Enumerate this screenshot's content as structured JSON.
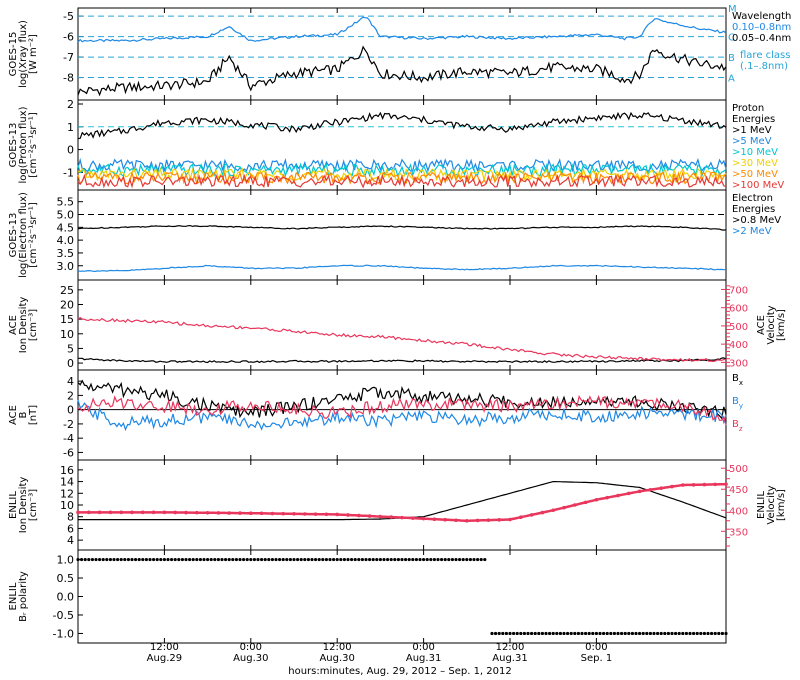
{
  "chart_data": [
    {
      "type": "line",
      "id": "xray",
      "ylabel": [
        "GOES-15",
        "log(Xray flux)",
        "[W m⁻²]"
      ],
      "yticks": [
        "-5",
        "-6",
        "-7",
        "-8"
      ],
      "ylim": [
        -8.9,
        -4.8
      ],
      "right_ticks": [
        "M",
        "C",
        "B",
        "A"
      ],
      "flare_levels": [
        -5,
        -6,
        -7,
        -8
      ],
      "legend": {
        "title": "Wavelength",
        "entries": [
          {
            "label": "0.10–0.8nm",
            "color": "#1e88e5"
          },
          {
            "label": "0.05–0.4nm",
            "color": "#000000"
          }
        ],
        "note": [
          "flare class",
          "(.1–.8nm)"
        ]
      },
      "series": [
        {
          "color": "#1e88e5",
          "x": [
            0,
            6,
            12,
            18,
            21,
            24,
            30,
            36,
            40,
            42,
            48,
            54,
            60,
            66,
            72,
            74,
            76,
            78,
            80,
            82,
            86,
            90
          ],
          "y": [
            -6.2,
            -6.2,
            -6.1,
            -6.0,
            -5.5,
            -6.2,
            -6.0,
            -5.9,
            -5.0,
            -6.0,
            -6.1,
            -6.0,
            -6.1,
            -6.0,
            -5.9,
            -6.0,
            -6.1,
            -6.0,
            -5.1,
            -5.3,
            -5.6,
            -5.8
          ]
        },
        {
          "color": "#000000",
          "x": [
            0,
            6,
            12,
            18,
            21,
            24,
            30,
            36,
            40,
            42,
            48,
            54,
            60,
            66,
            72,
            74,
            76,
            78,
            80,
            82,
            86,
            90
          ],
          "y": [
            -8.7,
            -8.5,
            -8.4,
            -8.2,
            -7.0,
            -8.4,
            -7.8,
            -7.6,
            -6.6,
            -7.8,
            -8.0,
            -7.7,
            -7.8,
            -7.5,
            -7.6,
            -7.8,
            -8.1,
            -7.9,
            -6.6,
            -6.9,
            -7.3,
            -7.5
          ]
        }
      ]
    },
    {
      "type": "line",
      "id": "proton",
      "ylabel": [
        "GOES-13",
        "log(Proton flux)",
        "[cm⁻²s⁻¹sr⁻¹]"
      ],
      "yticks": [
        "2",
        "1",
        "0",
        "-1"
      ],
      "ylim": [
        -1.6,
        2.0
      ],
      "reference_line": 1,
      "legend": {
        "title": [
          "Proton",
          "Energies"
        ],
        "entries": [
          {
            "label": ">1 MeV",
            "color": "#000000"
          },
          {
            "label": ">5 MeV",
            "color": "#1e88e5"
          },
          {
            "label": ">10 MeV",
            "color": "#00c8d0"
          },
          {
            "label": ">30 MeV",
            "color": "#f0d000"
          },
          {
            "label": ">50 MeV",
            "color": "#ff8a00"
          },
          {
            "label": ">100 MeV",
            "color": "#e53935"
          }
        ]
      },
      "series": [
        {
          "color": "#000000",
          "x": [
            0,
            6,
            12,
            18,
            24,
            30,
            36,
            42,
            48,
            54,
            60,
            66,
            72,
            78,
            84,
            90
          ],
          "y": [
            0.6,
            0.8,
            1.2,
            1.3,
            1.1,
            0.9,
            1.2,
            1.5,
            1.3,
            1.0,
            0.9,
            1.2,
            1.4,
            1.5,
            1.3,
            1.0
          ]
        },
        {
          "color": "#1e88e5",
          "x": [
            0,
            90
          ],
          "y": [
            -0.7,
            -0.7
          ]
        },
        {
          "color": "#00c8d0",
          "x": [
            0,
            90
          ],
          "y": [
            -0.9,
            -0.9
          ]
        },
        {
          "color": "#f0d000",
          "x": [
            0,
            90
          ],
          "y": [
            -1.1,
            -1.1
          ]
        },
        {
          "color": "#ff8a00",
          "x": [
            0,
            90
          ],
          "y": [
            -1.25,
            -1.25
          ]
        },
        {
          "color": "#e53935",
          "x": [
            0,
            90
          ],
          "y": [
            -1.4,
            -1.4
          ]
        }
      ]
    },
    {
      "type": "line",
      "id": "electron",
      "ylabel": [
        "GOES-13",
        "log(Electron flux)",
        "[cm⁻²s⁻¹sr⁻¹]"
      ],
      "yticks": [
        "5.5",
        "5.0",
        "4.5",
        "4.0",
        "3.5",
        "3.0"
      ],
      "ylim": [
        2.6,
        5.8
      ],
      "reference_line": 5.0,
      "legend": {
        "title": [
          "Electron",
          "Energies"
        ],
        "entries": [
          {
            "label": ">0.8 MeV",
            "color": "#000000"
          },
          {
            "label": ">2 MeV",
            "color": "#1e88e5"
          }
        ]
      },
      "series": [
        {
          "color": "#000000",
          "x": [
            0,
            6,
            12,
            18,
            24,
            30,
            36,
            42,
            48,
            54,
            60,
            66,
            72,
            78,
            84,
            90
          ],
          "y": [
            4.45,
            4.5,
            4.55,
            4.55,
            4.5,
            4.45,
            4.5,
            4.55,
            4.5,
            4.45,
            4.45,
            4.5,
            4.5,
            4.55,
            4.5,
            4.4
          ]
        },
        {
          "color": "#1e88e5",
          "x": [
            0,
            6,
            12,
            18,
            24,
            30,
            36,
            42,
            48,
            54,
            60,
            66,
            72,
            78,
            84,
            90
          ],
          "y": [
            2.8,
            2.8,
            2.9,
            3.0,
            2.9,
            2.9,
            3.0,
            3.0,
            2.9,
            2.85,
            2.9,
            3.0,
            3.0,
            2.95,
            2.9,
            2.85
          ]
        }
      ]
    },
    {
      "type": "line",
      "id": "ace_plasma",
      "ylabel": [
        "ACE",
        "Ion Density",
        "[cm⁻³]"
      ],
      "yticks": [
        "25",
        "20",
        "15",
        "10",
        "5",
        "0"
      ],
      "ylim": [
        -1,
        27
      ],
      "right_ylabel": [
        "ACE",
        "Velocity",
        "[km/s]"
      ],
      "right_yticks": [
        "700",
        "600",
        "500",
        "400",
        "300"
      ],
      "right_ylim": [
        280,
        730
      ],
      "series": [
        {
          "name": "density",
          "color": "#000000",
          "x": [
            0,
            6,
            12,
            18,
            24,
            30,
            36,
            42,
            48,
            54,
            60,
            66,
            72,
            78,
            84,
            90
          ],
          "y": [
            1.5,
            0.8,
            0.5,
            0.5,
            0.5,
            0.6,
            0.6,
            0.8,
            0.7,
            0.5,
            0.5,
            0.5,
            0.6,
            0.8,
            0.8,
            1.5
          ]
        },
        {
          "name": "velocity",
          "color": "#e8365d",
          "axis": "right",
          "x": [
            0,
            6,
            12,
            18,
            24,
            30,
            36,
            42,
            48,
            54,
            60,
            66,
            72,
            78,
            84,
            90
          ],
          "y": [
            540,
            530,
            520,
            500,
            490,
            470,
            450,
            440,
            420,
            400,
            370,
            345,
            330,
            320,
            315,
            310
          ]
        }
      ]
    },
    {
      "type": "line",
      "id": "ace_mag",
      "ylabel": [
        "ACE",
        "B",
        "[nT]"
      ],
      "yticks": [
        "4",
        "2",
        "0",
        "-2",
        "-4",
        "-6"
      ],
      "ylim": [
        -6.5,
        5
      ],
      "zero_line": 0,
      "legend": {
        "entries": [
          {
            "label": "B",
            "sub": "x",
            "color": "#000000"
          },
          {
            "label": "B",
            "sub": "y",
            "color": "#1e88e5"
          },
          {
            "label": "B",
            "sub": "z",
            "color": "#e8365d"
          }
        ]
      },
      "series": [
        {
          "color": "#000000",
          "x": [
            0,
            6,
            12,
            18,
            24,
            30,
            36,
            42,
            48,
            54,
            60,
            66,
            72,
            78,
            84,
            90
          ],
          "y": [
            3.5,
            2.8,
            2.0,
            0.5,
            -0.5,
            0.5,
            1.5,
            2.5,
            1.8,
            1.5,
            1.0,
            1.2,
            1.5,
            1.0,
            0.5,
            -0.5
          ]
        },
        {
          "color": "#1e88e5",
          "x": [
            0,
            6,
            12,
            18,
            24,
            30,
            36,
            42,
            48,
            54,
            60,
            66,
            72,
            78,
            84,
            90
          ],
          "y": [
            0.5,
            -2.0,
            -1.5,
            -1.0,
            -2.0,
            -2.0,
            -1.0,
            -1.5,
            -1.0,
            -1.5,
            -1.0,
            -0.5,
            -1.0,
            -0.5,
            -0.5,
            -1.0
          ]
        },
        {
          "color": "#e8365d",
          "x": [
            0,
            6,
            12,
            18,
            24,
            30,
            36,
            42,
            48,
            54,
            60,
            66,
            72,
            78,
            84,
            90
          ],
          "y": [
            0.5,
            1.0,
            0.5,
            0.0,
            0.8,
            0.0,
            -0.5,
            0.5,
            0.8,
            0.8,
            0.5,
            0.8,
            1.2,
            1.0,
            0.5,
            -1.5
          ]
        }
      ]
    },
    {
      "type": "line",
      "id": "enlil_plasma",
      "ylabel": [
        "ENLIL",
        "Ion Density",
        "[cm⁻³]"
      ],
      "yticks": [
        "16",
        "14",
        "12",
        "10",
        "8",
        "6",
        "4"
      ],
      "ylim": [
        3,
        17
      ],
      "right_ylabel": [
        "ENLIL",
        "Velocity",
        "[km/s]"
      ],
      "right_yticks": [
        "500",
        "450",
        "400",
        "350"
      ],
      "right_ylim": [
        315,
        510
      ],
      "series": [
        {
          "name": "density",
          "color": "#000000",
          "x": [
            0,
            12,
            24,
            36,
            42,
            48,
            54,
            60,
            66,
            72,
            78,
            84,
            90
          ],
          "y": [
            7.5,
            7.5,
            7.5,
            7.5,
            7.6,
            8.0,
            10.0,
            12.0,
            14.0,
            13.8,
            13.0,
            10.5,
            7.8
          ]
        },
        {
          "name": "velocity",
          "color": "#e8365d",
          "axis": "right",
          "x": [
            0,
            12,
            24,
            36,
            42,
            48,
            54,
            60,
            66,
            72,
            78,
            84,
            90
          ],
          "y": [
            395,
            395,
            393,
            390,
            385,
            380,
            375,
            378,
            400,
            425,
            445,
            460,
            462
          ]
        }
      ]
    },
    {
      "type": "scatter",
      "id": "enlil_polarity",
      "ylabel": [
        "ENLIL",
        "Bᵣ polarity"
      ],
      "yticks": [
        "1.0",
        "0.5",
        "0.0",
        "-0.5",
        "-1.0"
      ],
      "ylim": [
        -1.15,
        1.15
      ],
      "series": [
        {
          "color": "#000000",
          "segments": [
            {
              "x": [
                0,
                56.5
              ],
              "y": 1.0
            },
            {
              "x": [
                57.5,
                90
              ],
              "y": -1.0
            }
          ]
        }
      ]
    }
  ],
  "x_axis": {
    "range_hours": [
      0,
      90
    ],
    "ticks": [
      {
        "hour": 12,
        "label1": "12:00",
        "label2": "Aug.29"
      },
      {
        "hour": 24,
        "label1": "0:00",
        "label2": "Aug.30"
      },
      {
        "hour": 36,
        "label1": "12:00",
        "label2": "Aug.30"
      },
      {
        "hour": 48,
        "label1": "0:00",
        "label2": "Aug.31"
      },
      {
        "hour": 60,
        "label1": "12:00",
        "label2": "Aug.31"
      },
      {
        "hour": 72,
        "label1": "0:00",
        "label2": "Sep. 1"
      }
    ],
    "title": "hours:minutes, Aug. 29, 2012 – Sep.  1, 2012"
  }
}
